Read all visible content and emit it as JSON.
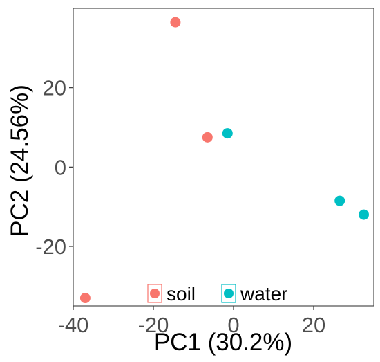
{
  "chart_data": {
    "type": "scatter",
    "xlabel": "PC1 (30.2%)",
    "ylabel": "PC2 (24.56%)",
    "xlim": [
      -40,
      35
    ],
    "ylim": [
      -35,
      40
    ],
    "x_ticks": [
      -40,
      -20,
      0,
      20
    ],
    "x_tick_labels": [
      "-40",
      "-20",
      "0",
      "20"
    ],
    "y_ticks": [
      -20,
      0,
      20
    ],
    "y_tick_labels": [
      "-20",
      "0",
      "20"
    ],
    "grid": false,
    "legend_placement": "bottom-center inside plot",
    "series": [
      {
        "name": "soil",
        "color": "#F8766D",
        "points": [
          {
            "x": -14.5,
            "y": 36.5
          },
          {
            "x": -6.5,
            "y": 7.5
          },
          {
            "x": -37,
            "y": -33
          }
        ]
      },
      {
        "name": "water",
        "color": "#00BFC4",
        "points": [
          {
            "x": -1.5,
            "y": 8.5
          },
          {
            "x": 26.5,
            "y": -8.5
          },
          {
            "x": 32.5,
            "y": -12
          }
        ]
      }
    ]
  }
}
